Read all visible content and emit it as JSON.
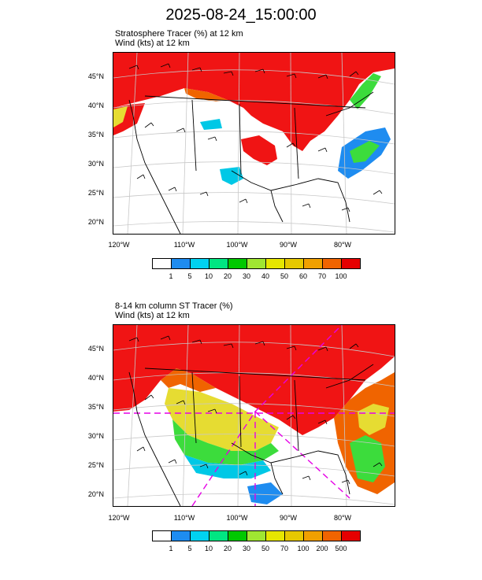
{
  "title": "2025-08-24_15:00:00",
  "panels": [
    {
      "title_line1": "Stratosphere Tracer   (%)     at   12 km",
      "title_line2": "Wind   (kts)     at   12 km",
      "lat_labels": [
        "45°N",
        "40°N",
        "35°N",
        "30°N",
        "25°N",
        "20°N"
      ],
      "lon_labels": [
        "120°W",
        "110°W",
        "100°W",
        "90°W",
        "80°W"
      ],
      "colorbar_labels": [
        "1",
        "5",
        "10",
        "20",
        "30",
        "40",
        "50",
        "60",
        "70",
        "100"
      ]
    },
    {
      "title_line1": "8-14 km column ST Tracer   (%)",
      "title_line2": "Wind   (kts)     at   12 km",
      "lat_labels": [
        "45°N",
        "40°N",
        "35°N",
        "30°N",
        "25°N",
        "20°N"
      ],
      "lon_labels": [
        "120°W",
        "110°W",
        "100°W",
        "90°W",
        "80°W"
      ],
      "colorbar_labels": [
        "1",
        "5",
        "10",
        "20",
        "30",
        "50",
        "70",
        "100",
        "200",
        "500"
      ]
    }
  ],
  "colorbar_colors": [
    "#ffffff",
    "#1e8cf0",
    "#00d2f0",
    "#00e682",
    "#00c800",
    "#a0e632",
    "#e6e600",
    "#e6c800",
    "#f0a000",
    "#f06400",
    "#e60000"
  ],
  "field_colors": {
    "high": "#f01414",
    "orange": "#f06400",
    "yellow": "#e6dc32",
    "green": "#3cdc3c",
    "cyan": "#00c8e6",
    "blue": "#1e8cf0"
  }
}
